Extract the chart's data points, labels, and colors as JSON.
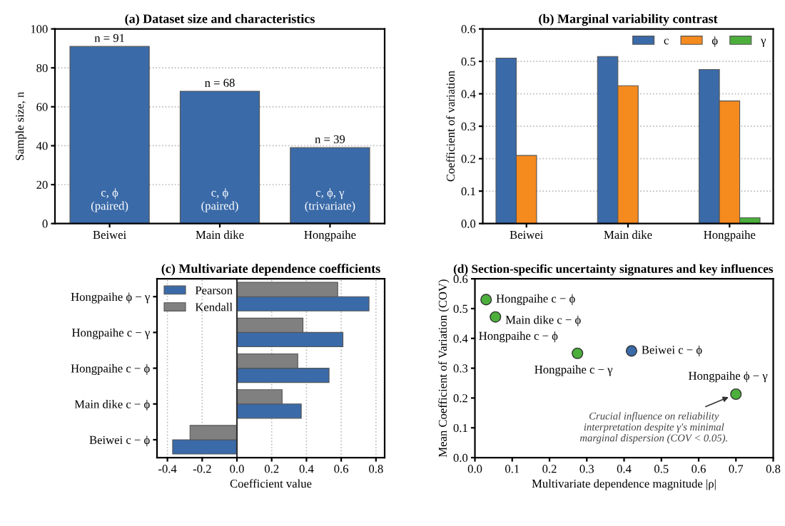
{
  "chart_data": [
    {
      "type": "bar",
      "title": "(a) Dataset size and characteristics",
      "ylabel": "Sample size, n",
      "categories": [
        "Beiwei",
        "Main dike",
        "Hongpaihe"
      ],
      "values": [
        91,
        68,
        39
      ],
      "color": "#3a6aa8",
      "value_labels": [
        "n = 91",
        "n = 68",
        "n = 39"
      ],
      "ylim": [
        0,
        100
      ],
      "yticks": [
        0,
        20,
        40,
        60,
        80,
        100
      ],
      "grid": "y",
      "annotations": [
        "c, ϕ\n(paired)",
        "c, ϕ\n(paired)",
        "c, ϕ, γ\n(trivariate)"
      ]
    },
    {
      "type": "bar",
      "title": "(b) Marginal variability contrast",
      "ylabel": "Coefficient of variation",
      "categories": [
        "Beiwei",
        "Main dike",
        "Hongpaihe"
      ],
      "series": [
        {
          "name": "c",
          "color": "#3a6aa8",
          "values": [
            0.51,
            0.515,
            0.475
          ]
        },
        {
          "name": "ϕ",
          "color": "#f58a1f",
          "values": [
            0.21,
            0.425,
            0.378
          ]
        },
        {
          "name": "γ",
          "color": "#4caf3c",
          "values": [
            null,
            null,
            0.018
          ]
        }
      ],
      "ylim": [
        0,
        0.6
      ],
      "yticks": [
        {
          "value": 0,
          "label": "0.0"
        },
        0.1,
        0.2,
        0.3,
        0.4,
        0.5,
        0.6
      ],
      "grid": "y",
      "legend": "top right"
    },
    {
      "type": "bar",
      "orientation": "horizontal",
      "title": "(c) Multivariate dependence coefficients",
      "xlabel": "Coefficient value",
      "categories": [
        "Hongpaihe ϕ − γ",
        "Hongpaihe c − γ",
        "Hongpaihe c − ϕ",
        "Main dike c − ϕ",
        "Beiwei c − ϕ"
      ],
      "series": [
        {
          "name": "Pearson",
          "color": "#3a6aa8",
          "values": [
            0.76,
            0.61,
            0.53,
            0.37,
            -0.37
          ]
        },
        {
          "name": "Kendall",
          "color": "#808080",
          "values": [
            0.58,
            0.38,
            0.35,
            0.26,
            -0.27
          ]
        }
      ],
      "xlim": [
        -0.46,
        0.85
      ],
      "xticks": [
        -0.4,
        -0.2,
        {
          "value": 0,
          "label": "0.0"
        },
        0.2,
        0.4,
        0.6,
        0.8
      ],
      "grid": "x",
      "legend": "top left",
      "ref_lines": [
        {
          "axis": "x",
          "value": 0,
          "color": "#333333"
        }
      ]
    },
    {
      "type": "scatter",
      "title": "(d) Section-specific uncertainty signatures and key influences",
      "xlabel": "Multivariate dependence magnitude |ρ|",
      "ylabel": "Mean Coefficient of Variation (COV)",
      "x": [
        0.03,
        0.055,
        0.275,
        0.42,
        0.7
      ],
      "values": [
        0.53,
        0.472,
        0.35,
        0.358,
        0.213
      ],
      "colors": [
        "#4caf3c",
        "#4caf3c",
        "#4caf3c",
        "#3a6aa8",
        "#4caf3c"
      ],
      "marker": "circle",
      "xlim": [
        0,
        0.8
      ],
      "xticks": [
        {
          "value": 0,
          "label": "0.0"
        },
        0.1,
        0.2,
        0.3,
        0.4,
        0.5,
        0.6,
        0.7,
        0.8
      ],
      "ylim": [
        0,
        0.6
      ],
      "yticks": [
        {
          "value": 0,
          "label": "0.0"
        },
        0.1,
        0.2,
        0.3,
        0.4,
        0.5,
        0.6
      ],
      "annotations": [
        {
          "text": "Hongpaihe c − ϕ",
          "x": 0.03,
          "y": 0.53
        },
        {
          "text": "Main dike c − ϕ",
          "x": 0.055,
          "y": 0.472
        },
        "Hongpaihe c − ϕ",
        {
          "text": "Hongpaihe c − γ",
          "x": 0.275,
          "y": 0.35
        },
        {
          "text": "Beiwei c − ϕ",
          "x": 0.42,
          "y": 0.358
        },
        {
          "text": "Hongpaihe ϕ − γ",
          "x": 0.7,
          "y": 0.213
        },
        {
          "text": "Crucial influence on reliability\ninterpretation despite γ's minimal\nmarginal dispersion (COV < 0.05).",
          "x": 0.7,
          "y": 0.213
        }
      ]
    }
  ]
}
